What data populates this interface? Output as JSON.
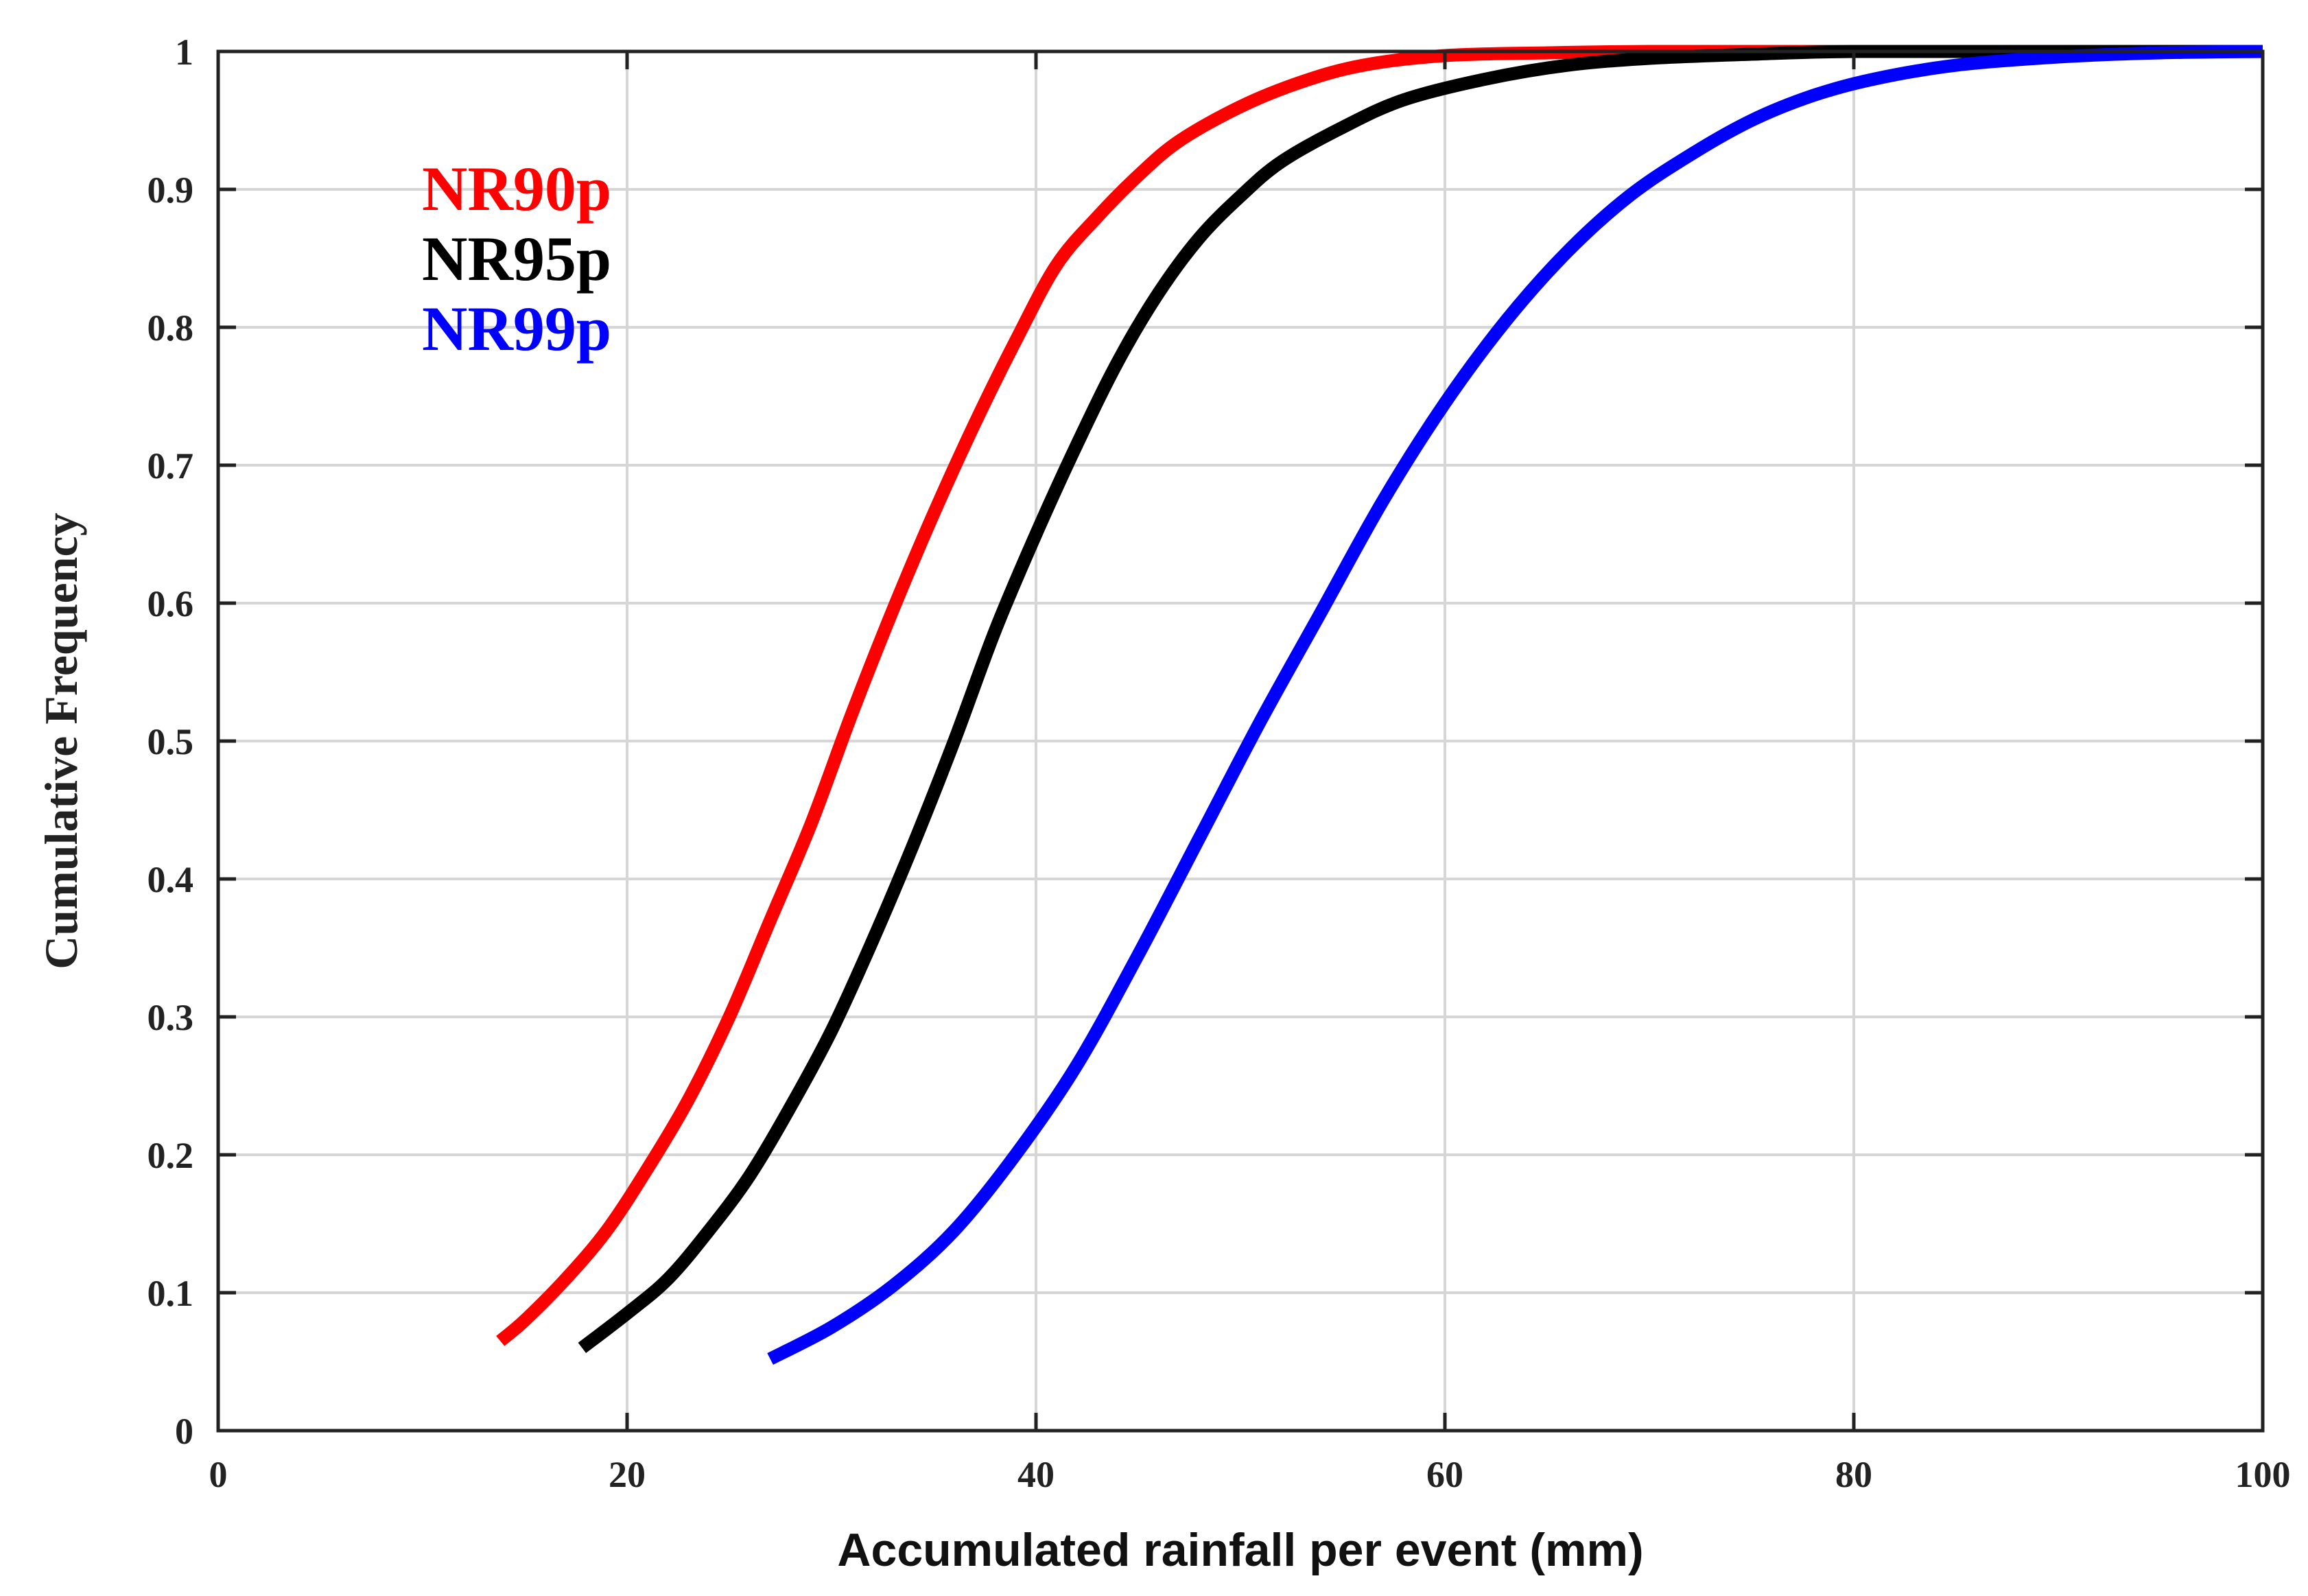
{
  "chart_data": {
    "type": "line",
    "title": "",
    "xlabel": "Accumulated rainfall per event (mm)",
    "ylabel": "Cumulative Frequency",
    "xlim": [
      0,
      100
    ],
    "ylim": [
      0,
      1
    ],
    "grid": true,
    "legend_position": "top-left",
    "x_ticks": [
      0,
      20,
      40,
      60,
      80,
      100
    ],
    "x_tick_labels": [
      "0",
      "20",
      "40",
      "60",
      "80",
      "100"
    ],
    "y_ticks": [
      0,
      0.1,
      0.2,
      0.3,
      0.4,
      0.5,
      0.6,
      0.7,
      0.8,
      0.9,
      1
    ],
    "y_tick_labels": [
      "0",
      "0.1",
      "0.2",
      "0.3",
      "0.4",
      "0.5",
      "0.6",
      "0.7",
      "0.8",
      "0.9",
      "1"
    ],
    "series": [
      {
        "name": "NR90p",
        "color": "#ff0000",
        "x": [
          13.8,
          15,
          17,
          19,
          21,
          23,
          25,
          27,
          29,
          31,
          33,
          35,
          37,
          39,
          41,
          43,
          45,
          47,
          50,
          53,
          56,
          60,
          65,
          70,
          80,
          90,
          100
        ],
        "y": [
          0.065,
          0.08,
          0.11,
          0.145,
          0.19,
          0.24,
          0.3,
          0.37,
          0.44,
          0.52,
          0.595,
          0.665,
          0.73,
          0.79,
          0.845,
          0.88,
          0.91,
          0.935,
          0.96,
          0.978,
          0.99,
          0.997,
          0.999,
          1.0,
          1.0,
          1.0,
          1.0
        ]
      },
      {
        "name": "NR95p",
        "color": "#000000",
        "x": [
          17.8,
          20,
          22,
          24,
          26,
          28,
          30,
          32,
          34,
          36,
          38,
          40,
          42,
          44,
          46,
          48,
          50,
          52,
          55,
          58,
          62,
          66,
          70,
          75,
          80,
          90,
          100
        ],
        "y": [
          0.06,
          0.085,
          0.11,
          0.145,
          0.185,
          0.235,
          0.29,
          0.355,
          0.425,
          0.5,
          0.58,
          0.65,
          0.715,
          0.775,
          0.825,
          0.865,
          0.895,
          0.92,
          0.945,
          0.965,
          0.98,
          0.99,
          0.995,
          0.998,
          1.0,
          1.0,
          1.0
        ]
      },
      {
        "name": "NR99p",
        "color": "#0000ff",
        "x": [
          27,
          30,
          33,
          36,
          39,
          42,
          45,
          48,
          51,
          54,
          57,
          60,
          63,
          66,
          69,
          72,
          75,
          78,
          81,
          85,
          90,
          95,
          100
        ],
        "y": [
          0.052,
          0.075,
          0.105,
          0.145,
          0.2,
          0.265,
          0.345,
          0.43,
          0.515,
          0.595,
          0.675,
          0.745,
          0.805,
          0.855,
          0.895,
          0.925,
          0.95,
          0.968,
          0.98,
          0.99,
          0.996,
          0.999,
          1.0
        ]
      }
    ]
  }
}
